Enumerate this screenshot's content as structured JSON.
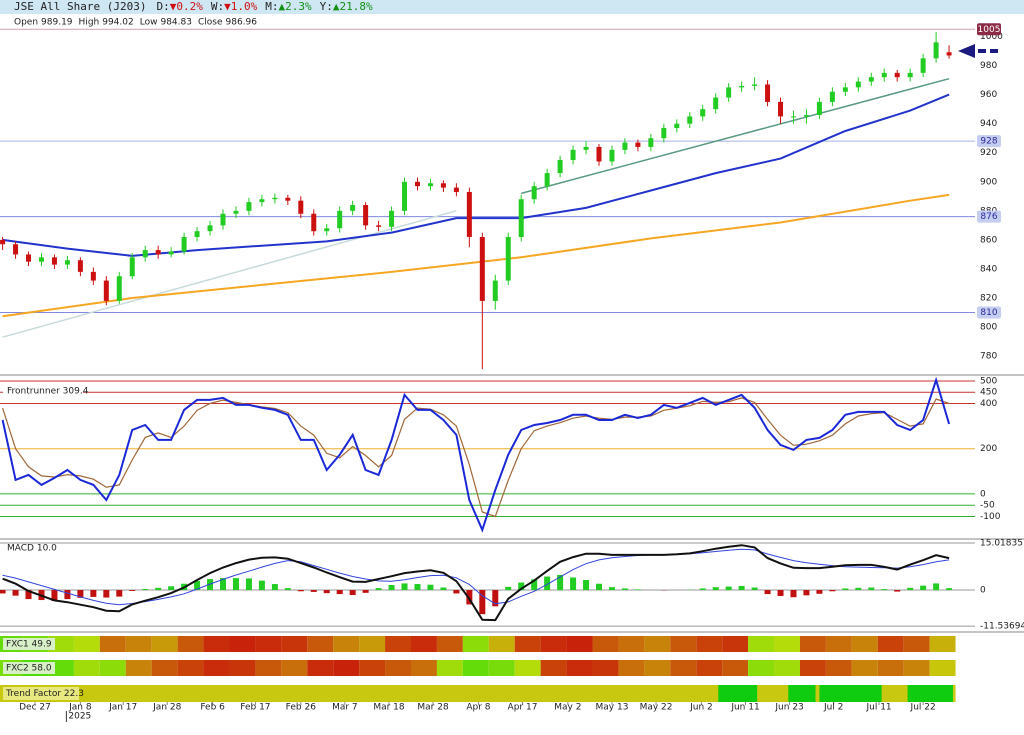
{
  "chart_data": [
    {
      "type": "candlestick",
      "title": "JSE All Share (J203)",
      "changes": [
        {
          "label": "D:",
          "value": "▼0.2%",
          "color": "#d01010"
        },
        {
          "label": "W:",
          "value": "▼1.0%",
          "color": "#d01010"
        },
        {
          "label": "M:",
          "value": "▲2.3%",
          "color": "#109010"
        },
        {
          "label": "Y:",
          "value": "▲21.8%",
          "color": "#109010"
        }
      ],
      "ohlc_info": [
        {
          "label": "Open",
          "value": 989.19
        },
        {
          "label": "High",
          "value": 994.02
        },
        {
          "label": "Low",
          "value": 984.83
        },
        {
          "label": "Close",
          "value": 986.96
        }
      ],
      "xlim": [
        -0.2,
        75
      ],
      "xticks": [
        {
          "value": 2.5,
          "label": "Dec 27"
        },
        {
          "value": 6.0,
          "label": "Jan 8"
        },
        {
          "value": 9.3,
          "label": "Jan 17"
        },
        {
          "value": 12.7,
          "label": "Jan 28"
        },
        {
          "value": 16.2,
          "label": "Feb 6"
        },
        {
          "value": 19.5,
          "label": "Feb 17"
        },
        {
          "value": 23.0,
          "label": "Feb 26"
        },
        {
          "value": 26.4,
          "label": "Mar 7"
        },
        {
          "value": 29.8,
          "label": "Mar 18"
        },
        {
          "value": 33.2,
          "label": "Mar 28"
        },
        {
          "value": 36.7,
          "label": "Apr 8"
        },
        {
          "value": 40.1,
          "label": "Apr 17"
        },
        {
          "value": 43.6,
          "label": "May 2"
        },
        {
          "value": 47.0,
          "label": "May 13"
        },
        {
          "value": 50.4,
          "label": "May 22"
        },
        {
          "value": 53.9,
          "label": "Jun 2"
        },
        {
          "value": 57.3,
          "label": "Jun 11"
        },
        {
          "value": 60.7,
          "label": "Jun 23"
        },
        {
          "value": 64.1,
          "label": "Jul 2"
        },
        {
          "value": 67.6,
          "label": "Jul 11"
        },
        {
          "value": 71.0,
          "label": "Jul 22"
        }
      ],
      "year_label": "2025",
      "ylim": [
        767,
        1010
      ],
      "yticks": [
        780,
        800,
        820,
        840,
        860,
        880,
        900,
        920,
        940,
        960,
        980,
        1000
      ],
      "up_color": "#22cc22",
      "down_color": "#cc1010",
      "values": [
        [
          860,
          862,
          853,
          857
        ],
        [
          857,
          859,
          847,
          850
        ],
        [
          850,
          852,
          842,
          845
        ],
        [
          845,
          851,
          842,
          848
        ],
        [
          848,
          850,
          840,
          843
        ],
        [
          843,
          849,
          840,
          846
        ],
        [
          846,
          848,
          835,
          838
        ],
        [
          838,
          841,
          829,
          832
        ],
        [
          832,
          835,
          815,
          818
        ],
        [
          818,
          838,
          816,
          835
        ],
        [
          835,
          851,
          833,
          848
        ],
        [
          848,
          856,
          845,
          853
        ],
        [
          853,
          856,
          847,
          850
        ],
        [
          850,
          855,
          848,
          852
        ],
        [
          852,
          865,
          850,
          862
        ],
        [
          862,
          869,
          859,
          866
        ],
        [
          866,
          873,
          863,
          870
        ],
        [
          870,
          881,
          867,
          878
        ],
        [
          878,
          883,
          875,
          880
        ],
        [
          880,
          889,
          877,
          886
        ],
        [
          886,
          891,
          883,
          888
        ],
        [
          888,
          892,
          885,
          889
        ],
        [
          889,
          891,
          884,
          887
        ],
        [
          887,
          890,
          875,
          878
        ],
        [
          878,
          881,
          863,
          866
        ],
        [
          866,
          871,
          863,
          868
        ],
        [
          868,
          883,
          865,
          880
        ],
        [
          880,
          887,
          877,
          884
        ],
        [
          884,
          886,
          867,
          870
        ],
        [
          870,
          873,
          866,
          869
        ],
        [
          869,
          883,
          866,
          880
        ],
        [
          880,
          903,
          877,
          900
        ],
        [
          900,
          903,
          894,
          897
        ],
        [
          897,
          902,
          894,
          899
        ],
        [
          899,
          901,
          893,
          896
        ],
        [
          896,
          899,
          890,
          893
        ],
        [
          893,
          896,
          855,
          862
        ],
        [
          862,
          865,
          771,
          818
        ],
        [
          818,
          836,
          812,
          832
        ],
        [
          832,
          865,
          829,
          862
        ],
        [
          862,
          891,
          859,
          888
        ],
        [
          888,
          900,
          885,
          897
        ],
        [
          897,
          909,
          894,
          906
        ],
        [
          906,
          918,
          903,
          915
        ],
        [
          915,
          925,
          912,
          922
        ],
        [
          922,
          928,
          919,
          924
        ],
        [
          924,
          926,
          911,
          914
        ],
        [
          914,
          925,
          911,
          922
        ],
        [
          922,
          930,
          919,
          927
        ],
        [
          927,
          929,
          921,
          924
        ],
        [
          924,
          933,
          921,
          930
        ],
        [
          930,
          940,
          927,
          937
        ],
        [
          937,
          943,
          934,
          940
        ],
        [
          940,
          948,
          937,
          945
        ],
        [
          945,
          953,
          942,
          950
        ],
        [
          950,
          961,
          947,
          958
        ],
        [
          958,
          968,
          955,
          965
        ],
        [
          965,
          969,
          962,
          966
        ],
        [
          966,
          972,
          963,
          967
        ],
        [
          967,
          970,
          952,
          955
        ],
        [
          955,
          958,
          940,
          945
        ],
        [
          945,
          949,
          940,
          945
        ],
        [
          945,
          950,
          940,
          946
        ],
        [
          946,
          958,
          943,
          955
        ],
        [
          955,
          965,
          952,
          962
        ],
        [
          962,
          968,
          959,
          965
        ],
        [
          965,
          972,
          962,
          969
        ],
        [
          969,
          975,
          966,
          972
        ],
        [
          972,
          978,
          969,
          975
        ],
        [
          975,
          977,
          969,
          972
        ],
        [
          972,
          978,
          969,
          975
        ],
        [
          975,
          988,
          972,
          985
        ],
        [
          985,
          1003,
          982,
          996
        ],
        [
          989.19,
          994.02,
          984.83,
          986.96
        ]
      ],
      "lines": [
        {
          "color": "#c8dada",
          "width": 1.5,
          "x": [
            0,
            35
          ],
          "values": [
            793,
            880
          ]
        },
        {
          "color": "#5a9a80",
          "width": 1.5,
          "x": [
            40,
            73
          ],
          "values": [
            892,
            971
          ]
        },
        {
          "color": "#f5a623",
          "width": 2,
          "x": [
            0,
            10,
            20,
            30,
            40,
            50,
            60,
            70,
            73
          ],
          "values": [
            807.5,
            820,
            829,
            838,
            848,
            861,
            872,
            887,
            891
          ]
        },
        {
          "color": "#2233cc",
          "width": 2,
          "x": [
            0,
            5,
            10,
            15,
            20,
            25,
            30,
            35,
            40,
            45,
            50,
            55,
            60,
            65,
            70,
            73
          ],
          "values": [
            860,
            854,
            849,
            853,
            856,
            859,
            865,
            875,
            875,
            882,
            894,
            906,
            916,
            935,
            949,
            960
          ]
        }
      ],
      "levels": [
        {
          "value": 1005,
          "color": "#d0a0b0",
          "box_color": "#8b2a45",
          "text_color": "#ffffff"
        },
        {
          "value": 928,
          "color": "#a8b0ea",
          "box_color": "#c5cdf0",
          "text_color": "#2a2a9a"
        },
        {
          "value": 876,
          "color": "#8088e0",
          "box_color": "#c5cdf0",
          "text_color": "#2a2a9a"
        },
        {
          "value": 810,
          "color": "#8088e0",
          "box_color": "#c5cdf0",
          "text_color": "#2a2a9a"
        }
      ]
    },
    {
      "type": "line",
      "label": "Frontrunner 309.4",
      "ylim": [
        -195,
        513
      ],
      "yticks": [
        500,
        450,
        400,
        200,
        0,
        -50,
        -100
      ],
      "grid_colors": [
        "#c83232",
        "#c83232",
        "#c83232",
        "#f0b030",
        "#30b030",
        "#30b030",
        "#30b030"
      ],
      "series": [
        {
          "color": "#a0673a",
          "width": 1.2,
          "values": [
            380,
            200,
            120,
            80,
            75,
            85,
            80,
            65,
            30,
            40,
            150,
            250,
            270,
            250,
            300,
            370,
            400,
            415,
            405,
            395,
            385,
            378,
            360,
            300,
            260,
            180,
            160,
            210,
            170,
            120,
            170,
            330,
            380,
            375,
            350,
            300,
            130,
            -80,
            -100,
            60,
            200,
            280,
            300,
            315,
            335,
            345,
            335,
            330,
            340,
            340,
            345,
            370,
            380,
            390,
            410,
            405,
            408,
            425,
            405,
            330,
            260,
            215,
            220,
            235,
            260,
            310,
            345,
            355,
            360,
            330,
            300,
            310,
            420,
            400
          ]
        },
        {
          "color": "#1a28d8",
          "width": 2,
          "values": [
            327,
            62,
            84,
            40,
            71,
            106,
            62,
            40,
            -27,
            84,
            283,
            305,
            239,
            239,
            372,
            416,
            416,
            425,
            394,
            394,
            381,
            372,
            350,
            239,
            239,
            106,
            173,
            261,
            106,
            84,
            239,
            438,
            372,
            372,
            327,
            261,
            -27,
            -159,
            18,
            173,
            283,
            305,
            314,
            327,
            350,
            350,
            327,
            327,
            350,
            336,
            350,
            394,
            381,
            403,
            425,
            394,
            416,
            438,
            381,
            283,
            217,
            195,
            239,
            248,
            283,
            350,
            363,
            363,
            363,
            305,
            283,
            327,
            504,
            309.4
          ]
        }
      ]
    },
    {
      "type": "macd",
      "label": "MACD 10.0",
      "ylim": [
        -13.4,
        16.6
      ],
      "yticks": [
        15.01835,
        0,
        -11.53694
      ],
      "up_color": "#22cc22",
      "down_color": "#c01010",
      "histogram": [
        -1.1,
        -1.8,
        -2.9,
        -3.2,
        -3.5,
        -2.9,
        -2.5,
        -2.2,
        -2.4,
        -2.1,
        -0.3,
        0.3,
        0.7,
        1.2,
        2.0,
        2.9,
        3.5,
        3.8,
        3.8,
        3.7,
        3.0,
        1.9,
        0.6,
        -0.4,
        -0.6,
        -1.0,
        -1.3,
        -1.6,
        -0.9,
        0.6,
        1.6,
        2.1,
        1.9,
        1.7,
        0.8,
        -1.1,
        -4.6,
        -7.7,
        -5.2,
        1.0,
        2.4,
        3.4,
        4.3,
        4.8,
        4.0,
        3.2,
        2.0,
        0.9,
        0.5,
        0.2,
        0.0,
        -0.1,
        0.0,
        0.1,
        0.5,
        0.9,
        1.1,
        1.3,
        0.8,
        -1.3,
        -1.9,
        -2.3,
        -1.7,
        -1.2,
        -0.4,
        0.5,
        0.7,
        0.8,
        0.3,
        -0.5,
        0.7,
        1.4,
        2.1,
        0.6
      ],
      "series": [
        {
          "color": "#3344dd",
          "width": 1,
          "values": [
            4.7,
            3.8,
            2.6,
            1.4,
            0.2,
            -1.0,
            -2.2,
            -3.3,
            -4.2,
            -4.7,
            -4.3,
            -3.7,
            -3.0,
            -2.2,
            -1.2,
            0.3,
            1.9,
            3.4,
            4.8,
            6.0,
            7.3,
            8.5,
            9.4,
            9.0,
            7.8,
            6.6,
            5.4,
            4.3,
            3.5,
            2.9,
            2.8,
            3.3,
            4.0,
            4.6,
            4.7,
            3.9,
            1.8,
            -1.8,
            -4.4,
            -3.8,
            -2.0,
            -0.4,
            1.8,
            4.2,
            6.5,
            8.4,
            9.6,
            10.3,
            10.7,
            11.0,
            11.2,
            11.3,
            11.4,
            11.6,
            11.9,
            12.3,
            12.7,
            13.0,
            12.8,
            11.5,
            10.4,
            9.4,
            8.7,
            8.2,
            7.8,
            7.4,
            7.3,
            7.2,
            7.1,
            7.0,
            7.4,
            8.1,
            9.0,
            9.6
          ]
        },
        {
          "color": "#111111",
          "width": 2,
          "values": [
            3.6,
            2.0,
            -0.3,
            -1.8,
            -3.3,
            -3.9,
            -4.7,
            -5.5,
            -6.6,
            -6.8,
            -4.6,
            -3.4,
            -2.3,
            -1.0,
            0.8,
            3.2,
            5.4,
            7.2,
            8.6,
            9.7,
            10.3,
            10.4,
            10.0,
            8.6,
            7.2,
            5.6,
            4.1,
            2.7,
            2.6,
            3.5,
            4.4,
            5.4,
            5.9,
            6.3,
            5.5,
            2.8,
            -2.8,
            -9.5,
            -9.6,
            -2.8,
            0.4,
            3.0,
            6.1,
            9.0,
            10.5,
            11.6,
            11.6,
            11.2,
            11.2,
            11.2,
            11.2,
            11.2,
            11.4,
            11.7,
            12.4,
            13.2,
            13.8,
            14.3,
            13.6,
            10.2,
            8.5,
            7.1,
            7.0,
            7.0,
            7.4,
            7.9,
            8.0,
            8.0,
            7.4,
            6.5,
            8.1,
            9.5,
            11.1,
            10.2
          ]
        }
      ]
    },
    {
      "type": "heatmap",
      "label": "FXC1 49.9",
      "cell_span": 2,
      "values": [
        75,
        70,
        60,
        55,
        25,
        30,
        35,
        20,
        10,
        8,
        10,
        12,
        20,
        30,
        35,
        15,
        10,
        20,
        65,
        40,
        15,
        10,
        8,
        20,
        25,
        30,
        20,
        15,
        12,
        60,
        55,
        20,
        25,
        30,
        15,
        20,
        40
      ]
    },
    {
      "type": "heatmap",
      "label": "FXC2 58.0",
      "cell_span": 2,
      "values": [
        70,
        80,
        75,
        60,
        65,
        30,
        20,
        15,
        10,
        12,
        20,
        25,
        10,
        8,
        15,
        20,
        25,
        60,
        75,
        70,
        55,
        15,
        10,
        12,
        25,
        30,
        20,
        15,
        20,
        65,
        60,
        15,
        20,
        30,
        25,
        30,
        45
      ]
    },
    {
      "type": "segments",
      "label": "Trend Factor 22.3",
      "base_color": "#c8c810",
      "color": "#10cc10",
      "segments": [
        [
          55.2,
          58.2
        ],
        [
          60.6,
          62.7
        ],
        [
          63.0,
          67.8
        ],
        [
          69.8,
          73.3
        ]
      ]
    }
  ]
}
